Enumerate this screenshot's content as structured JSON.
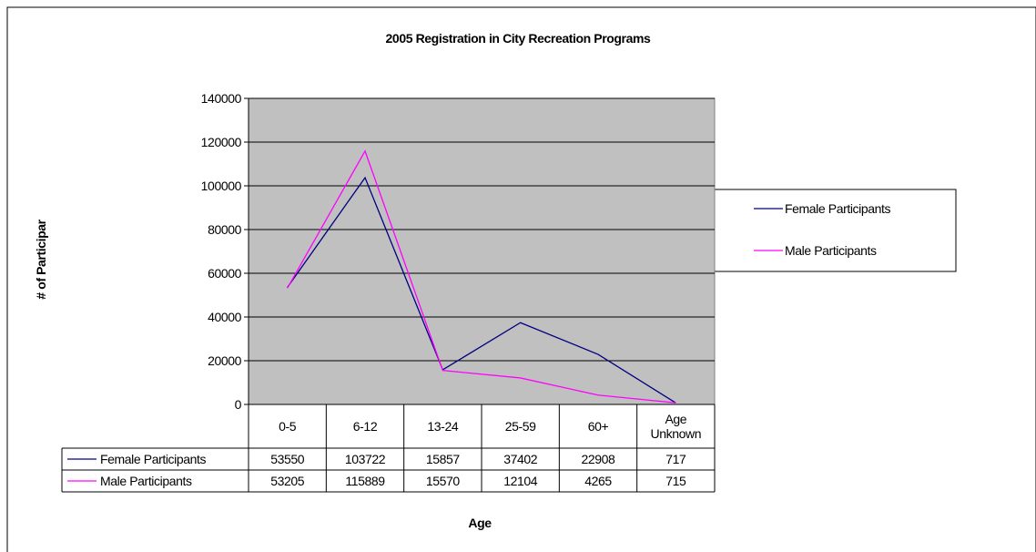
{
  "chart_data": {
    "type": "line",
    "title": "2005 Registration in City Recreation Programs",
    "y_label": "# of Participar",
    "x_label": "Age",
    "categories": [
      "0-5",
      "6-12",
      "13-24",
      "25-59",
      "60+",
      "Age Unknown"
    ],
    "series": [
      {
        "name": "Female Participants",
        "color": "#000080",
        "values": [
          53550,
          103722,
          15857,
          37402,
          22908,
          717
        ]
      },
      {
        "name": "Male Participants",
        "color": "#ff00ff",
        "values": [
          53205,
          115889,
          15570,
          12104,
          4265,
          715
        ]
      }
    ],
    "ylim": [
      0,
      140000
    ],
    "yticks": [
      0,
      20000,
      40000,
      60000,
      80000,
      100000,
      120000,
      140000
    ],
    "grid": true,
    "legend": "right",
    "plot_background": "#c0c0c0"
  }
}
